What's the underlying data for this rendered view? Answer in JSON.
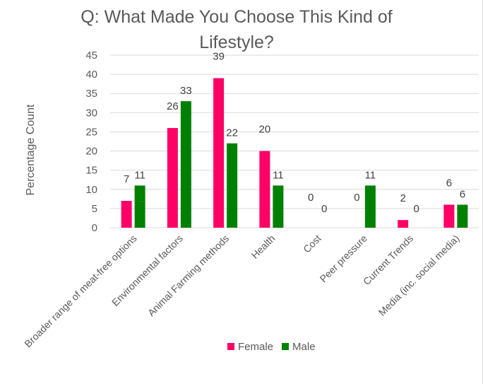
{
  "chart_data": {
    "type": "bar",
    "title": "Q: What Made You Choose This Kind of Lifestyle?",
    "title_lines": [
      "Q: What Made You Choose This Kind of",
      "Lifestyle?"
    ],
    "xlabel": "",
    "ylabel": "Percentage Count",
    "ylim": [
      0,
      45
    ],
    "yticks": [
      0,
      5,
      10,
      15,
      20,
      25,
      30,
      35,
      40,
      45
    ],
    "grid": true,
    "legend_position": "bottom",
    "categories": [
      "Broader range of meat-free options",
      "Environmental factors",
      "Animal Farming methods",
      "Health",
      "Cost",
      "Peer pressure",
      "Current Trends",
      "Media (inc. social media)"
    ],
    "series": [
      {
        "name": "Female",
        "color": "#ff0066",
        "values": [
          7,
          26,
          39,
          20,
          0,
          0,
          2,
          6
        ]
      },
      {
        "name": "Male",
        "color": "#008000",
        "values": [
          11,
          33,
          22,
          11,
          0,
          11,
          0,
          6
        ]
      }
    ]
  }
}
